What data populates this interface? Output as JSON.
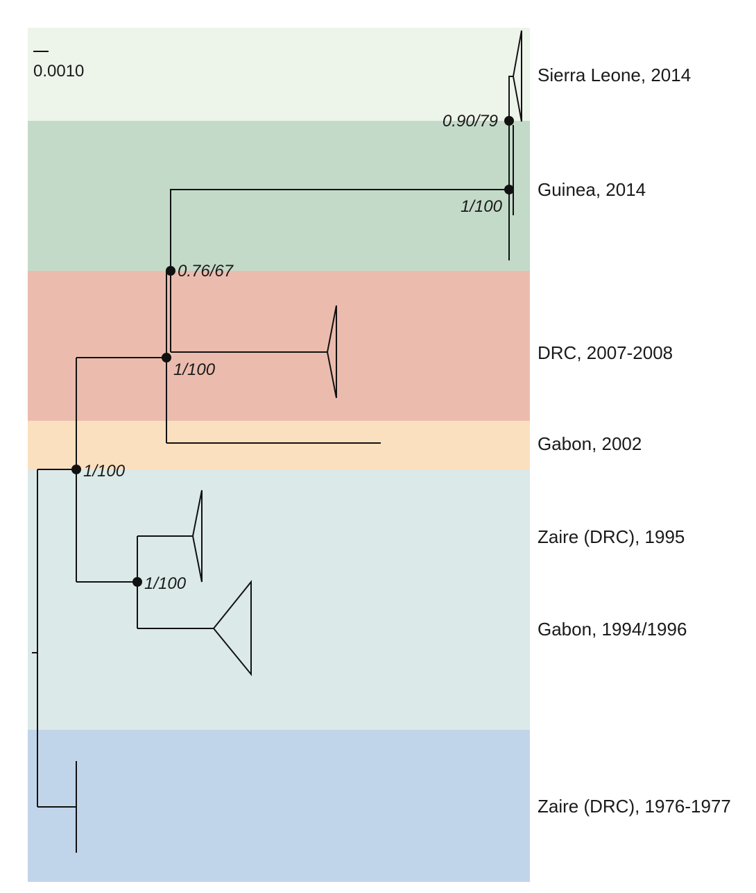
{
  "scale_bar": {
    "label": "0.0010"
  },
  "colors": {
    "sierra_leone_band": "#edf4ea",
    "guinea_band": "#c3dac9",
    "drc_2007_band": "#ebbcae",
    "gabon_2002_band": "#fbe0c0",
    "zaire_1995_gabon_band": "#dbe9e8",
    "zaire_1976_band": "#c1d5ea",
    "line": "#111111"
  },
  "clades": [
    {
      "id": "sierra-leone-2014",
      "label": "Sierra Leone, 2014"
    },
    {
      "id": "guinea-2014",
      "label": "Guinea, 2014"
    },
    {
      "id": "drc-2007-2008",
      "label": "DRC, 2007-2008"
    },
    {
      "id": "gabon-2002",
      "label": "Gabon, 2002"
    },
    {
      "id": "zaire-drc-1995",
      "label": "Zaire (DRC), 1995"
    },
    {
      "id": "gabon-1994-1996",
      "label": "Gabon, 1994/1996"
    },
    {
      "id": "zaire-drc-1976-1977",
      "label": "Zaire (DRC), 1976-1977"
    }
  ],
  "support_values": {
    "sierra_leone_node": "0.90/79",
    "guinea_node": "1/100",
    "west_africa_node": "0.76/67",
    "drc_node": "1/100",
    "root_clade_node": "1/100",
    "zaire_gabon_node": "1/100"
  }
}
